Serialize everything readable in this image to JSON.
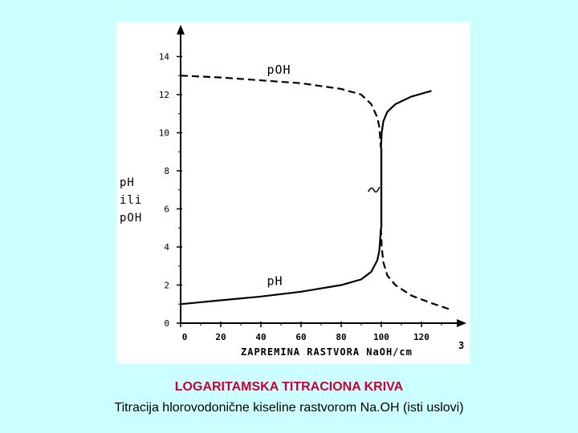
{
  "caption": {
    "title": "LOGARITAMSKA TITRACIONA KRIVA",
    "subtitle": "Titracija hlorovodonične kiseline rastvorom Na.OH (isti uslovi)"
  },
  "chart_data": {
    "type": "line",
    "title": "",
    "xlabel": "ZAPREMINA RASTVORA  NaOH/cm",
    "xlabel_superscript": "3",
    "ylabel_lines": [
      "pH",
      "ili",
      "pOH"
    ],
    "xlim": [
      0,
      140
    ],
    "ylim": [
      0,
      14.4
    ],
    "x_ticks": [
      0,
      20,
      40,
      60,
      80,
      100,
      120
    ],
    "y_ticks": [
      0,
      2,
      4,
      6,
      8,
      10,
      12,
      14
    ],
    "y_tick_labels": [
      "0",
      "2",
      "4",
      "6",
      "8",
      "10",
      "12",
      "14"
    ],
    "grid": false,
    "series": [
      {
        "name": "pOH",
        "style": "dashed-then-solid",
        "x": [
          0,
          20,
          40,
          60,
          80,
          90,
          95,
          98,
          99,
          99.8,
          100.2,
          101,
          103,
          107,
          115,
          125
        ],
        "y": [
          13,
          12.9,
          12.75,
          12.6,
          12.3,
          12.0,
          11.5,
          10.8,
          10.3,
          9.2,
          10.0,
          10.6,
          11.1,
          11.5,
          11.9,
          12.2
        ]
      },
      {
        "name": "pH",
        "style": "solid-then-dashed",
        "x": [
          0,
          20,
          40,
          60,
          80,
          90,
          95,
          98,
          99,
          99.8,
          100.2,
          101,
          103,
          107,
          115,
          125,
          135
        ],
        "y": [
          1.0,
          1.2,
          1.4,
          1.65,
          2.0,
          2.3,
          2.7,
          3.3,
          3.8,
          5.0,
          4.0,
          3.2,
          2.5,
          2.0,
          1.45,
          1.05,
          0.7
        ]
      }
    ],
    "annotations": [
      {
        "text": "pOH",
        "x": 43,
        "y": 13.1
      },
      {
        "text": "pH",
        "x": 43,
        "y": 2.0
      }
    ]
  }
}
